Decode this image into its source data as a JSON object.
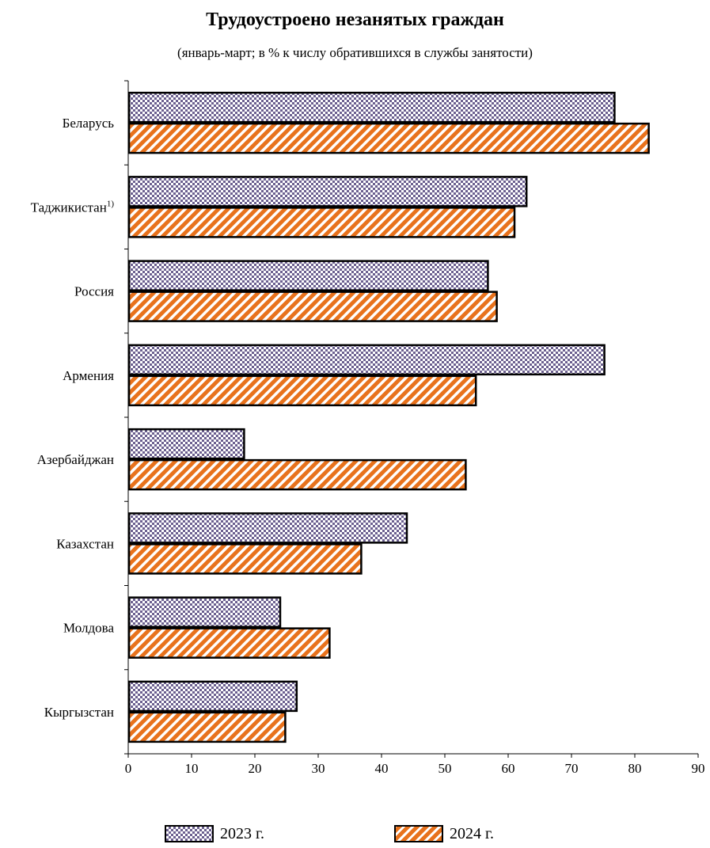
{
  "chart_data": {
    "type": "bar",
    "orientation": "horizontal",
    "title": "Трудоустроено незанятых граждан",
    "subtitle": "(январь-март; в % к числу обратившихся в службы занятости)",
    "categories": [
      {
        "name": "Беларусь",
        "sup": ""
      },
      {
        "name": "Таджикистан",
        "sup": "1)"
      },
      {
        "name": "Россия",
        "sup": ""
      },
      {
        "name": "Армения",
        "sup": ""
      },
      {
        "name": "Азербайджан",
        "sup": ""
      },
      {
        "name": "Казахстан",
        "sup": ""
      },
      {
        "name": "Молдова",
        "sup": ""
      },
      {
        "name": "Кыргызстан",
        "sup": ""
      }
    ],
    "series": [
      {
        "name": "2023 г.",
        "pattern": "checker",
        "color": "#6b5f8f",
        "values": [
          76.8,
          62.9,
          56.8,
          75.2,
          18.3,
          44.0,
          24.0,
          26.6
        ]
      },
      {
        "name": "2024 г.",
        "pattern": "diagonal-stripes",
        "color": "#e8721c",
        "values": [
          82.2,
          61.0,
          58.2,
          54.9,
          53.3,
          36.8,
          31.8,
          24.8
        ]
      }
    ],
    "xlim": [
      0,
      90
    ],
    "xticks": [
      "0",
      "10",
      "20",
      "30",
      "40",
      "50",
      "60",
      "70",
      "80",
      "90"
    ],
    "grid": false,
    "legend_position": "bottom"
  }
}
